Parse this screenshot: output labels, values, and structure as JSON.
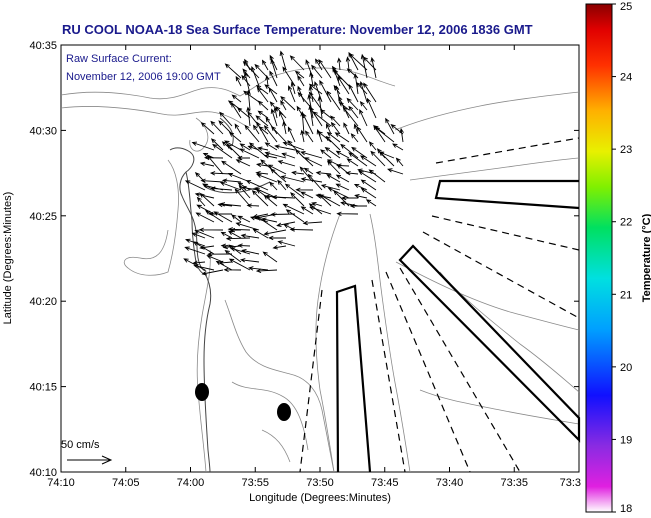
{
  "title": "RU COOL  NOAA-18  Sea Surface Temperature:  November 12, 2006 1836 GMT",
  "current_label": "Raw Surface Current:",
  "current_time": "November 12, 2006 19:00 GMT",
  "scale_label": "50 cm/s",
  "xlabel": "Longitude (Degrees:Minutes)",
  "ylabel": "Latitude (Degrees:Minutes)",
  "colorbar": {
    "label": "Temperature (°C)",
    "min": 18,
    "max": 25,
    "ticks": [
      "25",
      "24",
      "23",
      "22",
      "21",
      "20",
      "19",
      "18"
    ]
  },
  "x_ticks": [
    "74:10",
    "74:05",
    "74:00",
    "73:55",
    "73:50",
    "73:45",
    "73:40",
    "73:35",
    "73:3"
  ],
  "y_ticks": [
    "40:35",
    "40:30",
    "40:25",
    "40:20",
    "40:15",
    "40:10"
  ],
  "colors": {
    "title": "#1a1a8c",
    "contour": "#8a8a8a",
    "frame": "#000000"
  },
  "map_layers": [
    "coastline",
    "bathymetry-contours",
    "surface-current-vectors",
    "shipping-lanes",
    "buoys"
  ]
}
